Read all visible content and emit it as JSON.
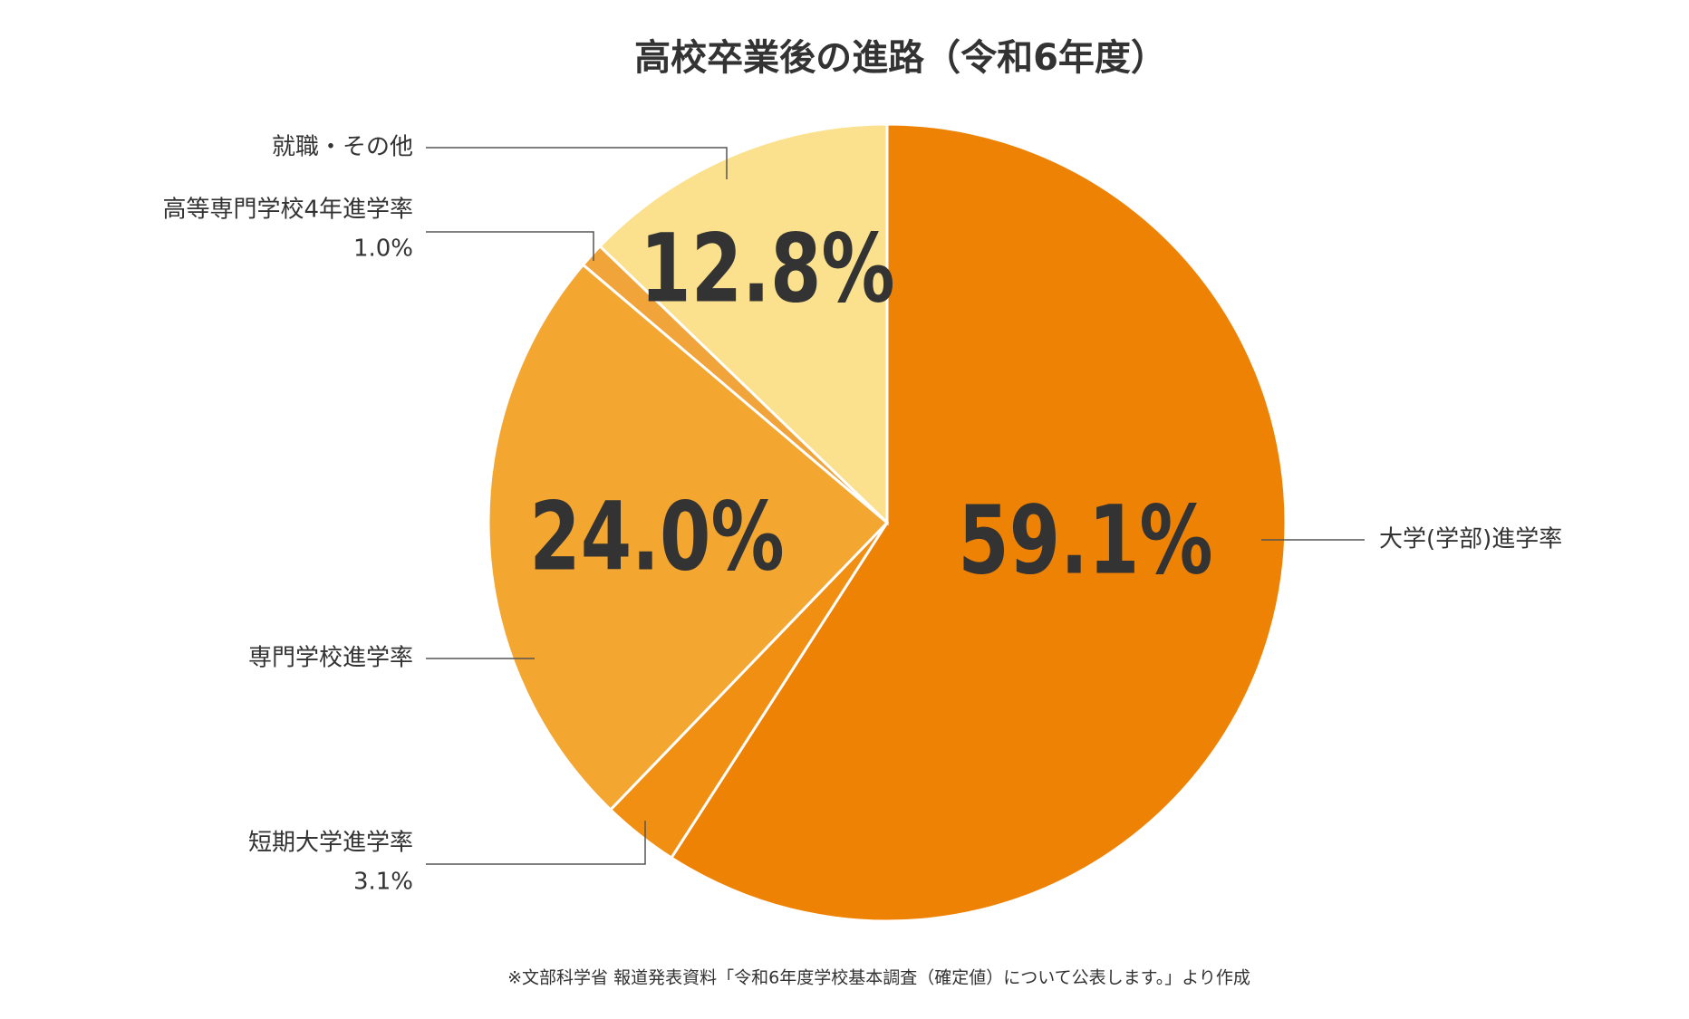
{
  "chart_data": {
    "type": "pie",
    "title": "高校卒業後の進路（令和6年度）",
    "categories": [
      "大学(学部)進学率",
      "短期大学進学率",
      "専門学校進学率",
      "高等専門学校4年進学率",
      "就職・その他"
    ],
    "values": [
      59.1,
      3.1,
      24.0,
      1.0,
      12.8
    ],
    "value_labels": [
      "59.1%",
      "3.1%",
      "24.0%",
      "1.0%",
      "12.8%"
    ],
    "colors": [
      "#ee8204",
      "#f08f12",
      "#f3a630",
      "#f1a43a",
      "#fbe18d"
    ],
    "source": "※文部科学省 報道発表資料「令和6年度学校基本調査（確定値）について公表します。」より作成"
  }
}
